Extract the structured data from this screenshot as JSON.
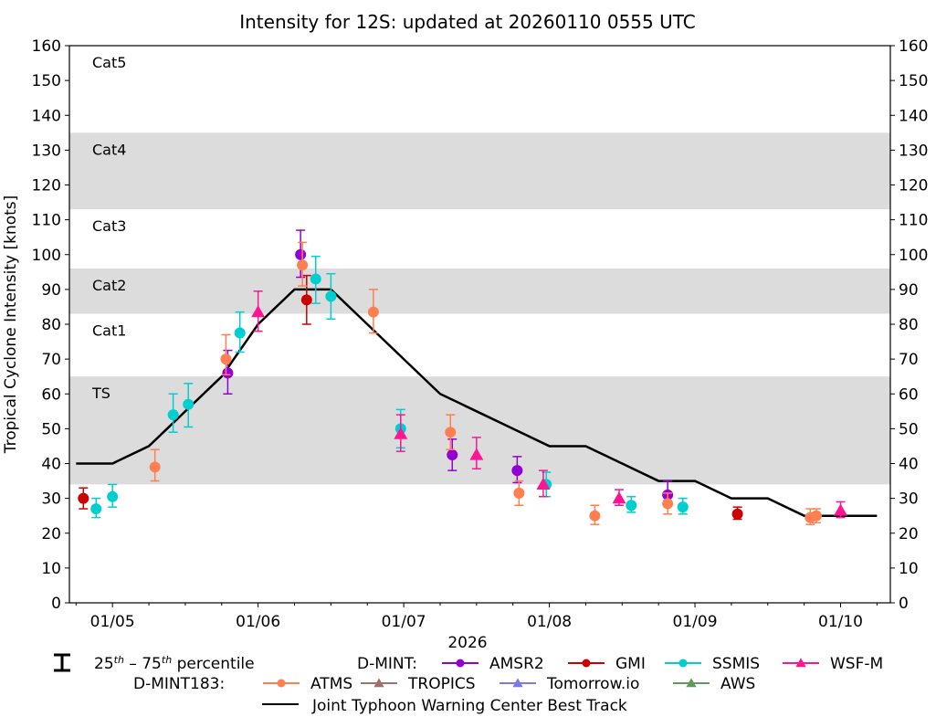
{
  "chart_data": {
    "type": "scatter",
    "title": "Intensity for 12S: updated at 20260110 0555 UTC",
    "xlabel": "2026",
    "ylabel": "Tropical Cyclone Intensity [knots]",
    "x_units": "hours since 2026-01-05 00 UTC",
    "xlim": [
      -7.1,
      128.2
    ],
    "ylim": [
      0,
      160
    ],
    "yticks": [
      0,
      10,
      20,
      30,
      40,
      50,
      60,
      70,
      80,
      90,
      100,
      110,
      120,
      130,
      140,
      150,
      160
    ],
    "xticks": [
      {
        "x": 0,
        "label": "01/05"
      },
      {
        "x": 24,
        "label": "01/06"
      },
      {
        "x": 48,
        "label": "01/07"
      },
      {
        "x": 72,
        "label": "01/08"
      },
      {
        "x": 96,
        "label": "01/09"
      },
      {
        "x": 120,
        "label": "01/10"
      }
    ],
    "minor_tick_hours": 6,
    "grid": false,
    "category_bands": [
      {
        "label": "TS",
        "from": 34,
        "to": 65,
        "shaded": true
      },
      {
        "label": "Cat1",
        "from": 65,
        "to": 83,
        "shaded": false
      },
      {
        "label": "Cat2",
        "from": 83,
        "to": 96,
        "shaded": true
      },
      {
        "label": "Cat3",
        "from": 96,
        "to": 113,
        "shaded": false
      },
      {
        "label": "Cat4",
        "from": 113,
        "to": 135,
        "shaded": true
      },
      {
        "label": "Cat5",
        "from": 135,
        "to": 160,
        "shaded": false
      }
    ],
    "best_track": {
      "name": "Joint Typhoon Warning Center Best Track",
      "color": "#000000",
      "x": [
        -6,
        0,
        6,
        12,
        18,
        24,
        30,
        36,
        42,
        48,
        54,
        60,
        66,
        72,
        78,
        84,
        90,
        96,
        102,
        108,
        114,
        120,
        126
      ],
      "y": [
        40,
        40,
        45,
        55,
        65,
        80,
        90,
        90,
        80,
        70,
        60,
        55,
        50,
        45,
        45,
        40,
        35,
        35,
        30,
        30,
        25,
        25,
        25
      ]
    },
    "series": [
      {
        "name": "AMSR2",
        "group": "D-MINT",
        "color": "#9400d3",
        "marker": "circle",
        "points": [
          {
            "x": 19,
            "y": 66,
            "lo": 60,
            "hi": 72.5
          },
          {
            "x": 31,
            "y": 100,
            "lo": 93.5,
            "hi": 107
          },
          {
            "x": 56,
            "y": 42.5,
            "lo": 38,
            "hi": 47
          },
          {
            "x": 66.7,
            "y": 38,
            "lo": 34.5,
            "hi": 42
          },
          {
            "x": 91.5,
            "y": 31,
            "lo": 28.5,
            "hi": 35
          }
        ]
      },
      {
        "name": "GMI",
        "group": "D-MINT",
        "color": "#cc0000",
        "marker": "circle",
        "points": [
          {
            "x": -4.8,
            "y": 30,
            "lo": 27,
            "hi": 33
          },
          {
            "x": 32,
            "y": 87,
            "lo": 80,
            "hi": 94
          },
          {
            "x": 103,
            "y": 25.5,
            "lo": 24,
            "hi": 27.5
          }
        ]
      },
      {
        "name": "SSMIS",
        "group": "D-MINT",
        "color": "#00ced1",
        "marker": "circle",
        "points": [
          {
            "x": -2.7,
            "y": 27,
            "lo": 24.5,
            "hi": 30
          },
          {
            "x": 0,
            "y": 30.5,
            "lo": 27.5,
            "hi": 34
          },
          {
            "x": 10,
            "y": 54,
            "lo": 49,
            "hi": 60
          },
          {
            "x": 12.5,
            "y": 57,
            "lo": 50.5,
            "hi": 63
          },
          {
            "x": 21,
            "y": 77.5,
            "lo": 72,
            "hi": 83.5
          },
          {
            "x": 33.5,
            "y": 93,
            "lo": 86,
            "hi": 99.5
          },
          {
            "x": 36,
            "y": 88,
            "lo": 81.5,
            "hi": 94.5
          },
          {
            "x": 47.5,
            "y": 50,
            "lo": 44.5,
            "hi": 55.5
          },
          {
            "x": 71.5,
            "y": 34,
            "lo": 30.5,
            "hi": 37.5
          },
          {
            "x": 85.5,
            "y": 28,
            "lo": 26,
            "hi": 30.5
          },
          {
            "x": 94,
            "y": 27.5,
            "lo": 25.5,
            "hi": 30
          }
        ]
      },
      {
        "name": "WSF-M",
        "group": "D-MINT",
        "color": "#ff1493",
        "marker": "triangle",
        "points": [
          {
            "x": 24,
            "y": 83.5,
            "lo": 78,
            "hi": 89.5
          },
          {
            "x": 47.5,
            "y": 48.5,
            "lo": 43.5,
            "hi": 54
          },
          {
            "x": 60,
            "y": 42.5,
            "lo": 38.5,
            "hi": 47.5
          },
          {
            "x": 71,
            "y": 34,
            "lo": 30.5,
            "hi": 38
          },
          {
            "x": 83.5,
            "y": 30,
            "lo": 28,
            "hi": 32.5
          },
          {
            "x": 120,
            "y": 26.5,
            "lo": 24.5,
            "hi": 29
          }
        ]
      },
      {
        "name": "ATMS",
        "group": "D-MINT183",
        "color": "#ff7f50",
        "marker": "circle",
        "points": [
          {
            "x": 7,
            "y": 39,
            "lo": 35,
            "hi": 44
          },
          {
            "x": 18.7,
            "y": 70,
            "lo": 65.5,
            "hi": 77
          },
          {
            "x": 31.3,
            "y": 97,
            "lo": 91,
            "hi": 103.5
          },
          {
            "x": 43,
            "y": 83.5,
            "lo": 77.5,
            "hi": 90
          },
          {
            "x": 55.7,
            "y": 49,
            "lo": 44,
            "hi": 54
          },
          {
            "x": 67,
            "y": 31.5,
            "lo": 28,
            "hi": 35
          },
          {
            "x": 79.5,
            "y": 25,
            "lo": 22.5,
            "hi": 28
          },
          {
            "x": 91.5,
            "y": 28.5,
            "lo": 25.5,
            "hi": 31.5
          },
          {
            "x": 115,
            "y": 24.5,
            "lo": 22.5,
            "hi": 27
          },
          {
            "x": 116,
            "y": 25,
            "lo": 23,
            "hi": 27
          }
        ]
      },
      {
        "name": "TROPICS",
        "group": "D-MINT183",
        "color": "#a0706a",
        "marker": "triangle",
        "points": []
      },
      {
        "name": "Tomorrow.io",
        "group": "D-MINT183",
        "color": "#7b78e8",
        "marker": "triangle",
        "points": []
      },
      {
        "name": "AWS",
        "group": "D-MINT183",
        "color": "#5e9a5e",
        "marker": "triangle",
        "points": []
      }
    ],
    "legend": {
      "placement": "bottom",
      "percentile_label_pre": "25",
      "percentile_sup1": "th",
      "percentile_mid": " – 75",
      "percentile_sup2": "th",
      "percentile_post": " percentile",
      "group1_label": "D-MINT:",
      "group2_label": "D-MINT183:",
      "best_track_label": "Joint Typhoon Warning Center Best Track"
    }
  }
}
